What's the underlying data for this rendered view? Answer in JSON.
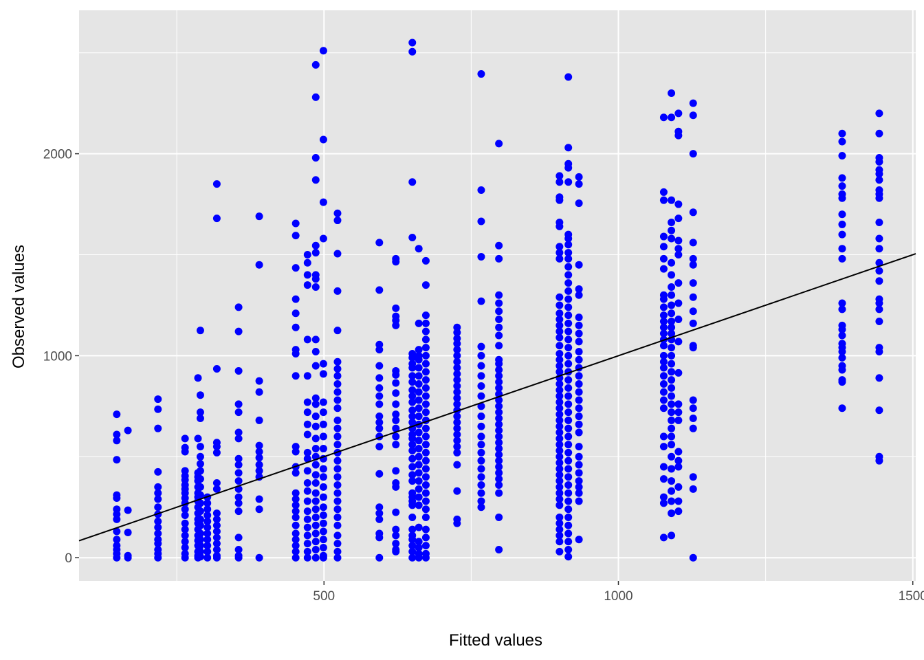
{
  "chart_data": {
    "type": "scatter",
    "xlabel": "Fitted values",
    "ylabel": "Observed values",
    "xlim": [
      84,
      1505
    ],
    "ylim": [
      -115,
      2710
    ],
    "x_ticks": [
      500,
      1000,
      1500
    ],
    "x_tick_labels": [
      "500",
      "1000",
      "1500"
    ],
    "y_ticks": [
      0,
      1000,
      2000
    ],
    "y_tick_labels": [
      "0",
      "1000",
      "2000"
    ],
    "grid": true,
    "reference_line": {
      "slope": 1,
      "intercept": 0
    },
    "point_color": "#0000ff",
    "line_color": "#000000",
    "panel_color": "#e5e5e5",
    "grid_color": "#ffffff",
    "columns": [
      {
        "x": 148,
        "y": [
          710,
          610,
          580,
          485,
          310,
          295,
          240,
          215,
          190,
          130,
          90,
          60,
          40,
          20,
          0
        ]
      },
      {
        "x": 167,
        "y": [
          630,
          235,
          125,
          10,
          0
        ]
      },
      {
        "x": 218,
        "y": [
          785,
          735,
          640,
          425,
          350,
          320,
          290,
          250,
          215,
          180,
          150,
          120,
          90,
          70,
          40,
          20,
          0
        ]
      },
      {
        "x": 264,
        "y": [
          590,
          545,
          525,
          430,
          405,
          385,
          360,
          340,
          320,
          295,
          270,
          240,
          210,
          170,
          140,
          110,
          80,
          50,
          20,
          0
        ]
      },
      {
        "x": 286,
        "y": [
          890,
          590,
          420,
          400,
          380,
          350,
          320,
          300,
          280,
          250,
          220,
          190,
          170,
          140,
          110,
          85,
          60,
          30,
          10,
          0
        ]
      },
      {
        "x": 290,
        "y": [
          1125,
          805,
          720,
          690,
          550,
          500,
          465,
          430,
          390,
          350,
          310,
          270,
          230,
          190,
          160,
          120,
          90,
          60,
          30,
          5
        ]
      },
      {
        "x": 302,
        "y": [
          300,
          270,
          240,
          210,
          180,
          150,
          120,
          90,
          60,
          30,
          0
        ]
      },
      {
        "x": 318,
        "y": [
          1850,
          1680,
          935,
          570,
          550,
          520,
          370,
          340,
          220,
          190,
          160,
          130,
          100,
          70,
          40,
          10,
          0
        ]
      },
      {
        "x": 355,
        "y": [
          1240,
          1120,
          925,
          760,
          720,
          620,
          590,
          490,
          460,
          420,
          380,
          340,
          300,
          270,
          230,
          100,
          40,
          10,
          0
        ]
      },
      {
        "x": 390,
        "y": [
          1690,
          1450,
          875,
          820,
          680,
          555,
          525,
          495,
          460,
          430,
          400,
          290,
          240,
          0
        ]
      },
      {
        "x": 452,
        "y": [
          1655,
          1595,
          1435,
          1280,
          1210,
          1140,
          1030,
          1010,
          900,
          550,
          525,
          450,
          420,
          320,
          290,
          260,
          230,
          200,
          160,
          120,
          90,
          60,
          30,
          0
        ]
      },
      {
        "x": 472,
        "y": [
          1500,
          1460,
          1400,
          1350,
          1080,
          900,
          770,
          720,
          660,
          610,
          520,
          490,
          430,
          370,
          330,
          280,
          230,
          190,
          150,
          110,
          70,
          30,
          0
        ]
      },
      {
        "x": 486,
        "y": [
          2440,
          2280,
          1980,
          1870,
          1545,
          1510,
          1400,
          1380,
          1340,
          1080,
          1020,
          950,
          790,
          760,
          700,
          650,
          590,
          540,
          500,
          460,
          410,
          370,
          320,
          280,
          240,
          200,
          160,
          120,
          80,
          40,
          0
        ]
      },
      {
        "x": 499,
        "y": [
          2510,
          2070,
          1760,
          1580,
          960,
          910,
          770,
          720,
          660,
          600,
          540,
          490,
          440,
          400,
          350,
          300,
          250,
          210,
          170,
          130,
          90,
          50,
          10,
          0
        ]
      },
      {
        "x": 523,
        "y": [
          1705,
          1670,
          1505,
          1320,
          1125,
          970,
          935,
          900,
          860,
          820,
          780,
          740,
          680,
          640,
          600,
          560,
          520,
          480,
          440,
          400,
          360,
          320,
          280,
          240,
          200,
          160,
          110,
          70,
          30,
          0
        ]
      },
      {
        "x": 594,
        "y": [
          1560,
          1325,
          1055,
          1030,
          950,
          890,
          840,
          800,
          760,
          700,
          670,
          640,
          600,
          550,
          415,
          250,
          220,
          190,
          120,
          100,
          0
        ]
      },
      {
        "x": 622,
        "y": [
          1480,
          1465,
          1235,
          1195,
          1175,
          1150,
          925,
          905,
          865,
          815,
          760,
          710,
          680,
          640,
          600,
          560,
          430,
          370,
          350,
          225,
          140,
          110,
          70,
          40,
          30
        ]
      },
      {
        "x": 650,
        "y": [
          2550,
          2505,
          1860,
          1585,
          1010,
          990,
          960,
          940,
          900,
          870,
          830,
          800,
          770,
          730,
          700,
          670,
          640,
          610,
          590,
          560,
          530,
          490,
          450,
          410,
          380,
          320,
          300,
          280,
          260,
          200,
          140,
          110,
          90,
          60,
          30,
          0
        ]
      },
      {
        "x": 661,
        "y": [
          1530,
          1160,
          1030,
          1000,
          980,
          940,
          900,
          860,
          820,
          780,
          740,
          700,
          660,
          620,
          580,
          540,
          500,
          460,
          420,
          380,
          340,
          300,
          260,
          150,
          80,
          50,
          20,
          0
        ]
      },
      {
        "x": 673,
        "y": [
          1470,
          1350,
          1200,
          1160,
          1120,
          1080,
          1040,
          1000,
          960,
          920,
          880,
          840,
          800,
          760,
          720,
          680,
          640,
          600,
          560,
          520,
          480,
          440,
          400,
          360,
          320,
          280,
          240,
          200,
          140,
          100,
          60,
          20,
          0
        ]
      },
      {
        "x": 726,
        "y": [
          1140,
          1115,
          1085,
          1060,
          1030,
          1000,
          970,
          940,
          910,
          880,
          850,
          820,
          790,
          760,
          730,
          700,
          670,
          640,
          610,
          580,
          550,
          520,
          460,
          330,
          190,
          170
        ]
      },
      {
        "x": 767,
        "y": [
          2395,
          1820,
          1665,
          1490,
          1270,
          1045,
          1000,
          950,
          900,
          850,
          800,
          750,
          700,
          650,
          600,
          560,
          520,
          480,
          440,
          400,
          360,
          320,
          280,
          250
        ]
      },
      {
        "x": 797,
        "y": [
          2050,
          1545,
          1480,
          1300,
          1260,
          1220,
          1180,
          1140,
          1100,
          1050,
          980,
          960,
          930,
          900,
          870,
          840,
          810,
          780,
          750,
          720,
          690,
          660,
          630,
          600,
          570,
          540,
          510,
          480,
          450,
          420,
          390,
          360,
          320,
          200,
          40
        ]
      },
      {
        "x": 900,
        "y": [
          1890,
          1860,
          1785,
          1770,
          1660,
          1640,
          1540,
          1510,
          1480,
          1290,
          1250,
          1210,
          1180,
          1150,
          1120,
          1090,
          1050,
          1010,
          980,
          950,
          920,
          890,
          860,
          830,
          800,
          770,
          740,
          710,
          680,
          650,
          620,
          590,
          560,
          530,
          500,
          470,
          440,
          410,
          380,
          350,
          320,
          290,
          260,
          200,
          170,
          140,
          110,
          80,
          30
        ]
      },
      {
        "x": 915,
        "y": [
          2380,
          2030,
          1950,
          1930,
          1860,
          1600,
          1580,
          1550,
          1510,
          1480,
          1440,
          1400,
          1360,
          1320,
          1280,
          1240,
          1200,
          1160,
          1120,
          1080,
          1040,
          1000,
          960,
          920,
          880,
          840,
          800,
          760,
          720,
          680,
          640,
          600,
          560,
          520,
          480,
          440,
          400,
          360,
          320,
          280,
          240,
          200,
          160,
          120,
          80,
          40,
          5
        ]
      },
      {
        "x": 933,
        "y": [
          1885,
          1850,
          1755,
          1450,
          1330,
          1300,
          1190,
          1150,
          1110,
          1070,
          1020,
          980,
          940,
          900,
          860,
          820,
          780,
          740,
          700,
          660,
          620,
          550,
          500,
          460,
          420,
          380,
          350,
          320,
          280,
          90
        ]
      },
      {
        "x": 1077,
        "y": [
          2180,
          1810,
          1770,
          1590,
          1540,
          1480,
          1430,
          1300,
          1280,
          1240,
          1200,
          1170,
          1140,
          1110,
          1080,
          1050,
          1000,
          970,
          940,
          900,
          860,
          820,
          780,
          740,
          600,
          550,
          450,
          390,
          300,
          270,
          100
        ]
      },
      {
        "x": 1090,
        "y": [
          2300,
          2180,
          1770,
          1660,
          1620,
          1580,
          1460,
          1400,
          1340,
          1300,
          1250,
          1210,
          1170,
          1140,
          1110,
          1080,
          1040,
          1000,
          960,
          920,
          880,
          840,
          800,
          760,
          720,
          680,
          640,
          600,
          560,
          500,
          440,
          380,
          330,
          280,
          220,
          110
        ]
      },
      {
        "x": 1102,
        "y": [
          2200,
          2110,
          2090,
          1750,
          1680,
          1570,
          1530,
          1500,
          1360,
          1260,
          1180,
          1070,
          915,
          760,
          720,
          680,
          525,
          480,
          450,
          350,
          280,
          230
        ]
      },
      {
        "x": 1127,
        "y": [
          2250,
          2190,
          2000,
          1710,
          1560,
          1480,
          1450,
          1360,
          1290,
          1220,
          1160,
          1050,
          1040,
          780,
          740,
          690,
          640,
          400,
          340,
          0
        ]
      },
      {
        "x": 1380,
        "y": [
          2100,
          2060,
          1990,
          1880,
          1840,
          1800,
          1780,
          1700,
          1650,
          1600,
          1530,
          1480,
          1260,
          1230,
          1150,
          1130,
          1100,
          1060,
          1040,
          1020,
          990,
          950,
          930,
          880,
          870,
          740
        ]
      },
      {
        "x": 1443,
        "y": [
          2200,
          2100,
          1980,
          1960,
          1920,
          1900,
          1870,
          1820,
          1800,
          1780,
          1660,
          1580,
          1530,
          1460,
          1420,
          1370,
          1280,
          1260,
          1230,
          1170,
          1040,
          1020,
          890,
          730,
          500,
          480
        ]
      }
    ]
  }
}
